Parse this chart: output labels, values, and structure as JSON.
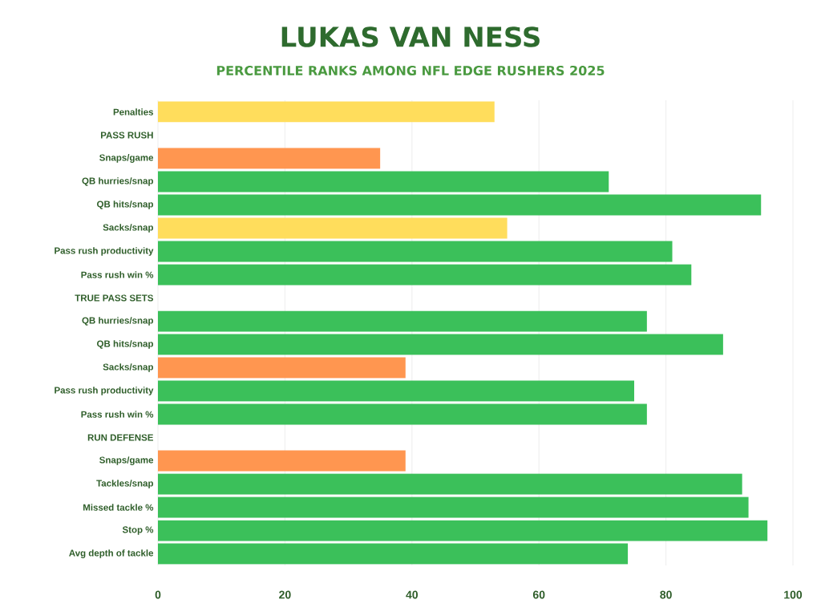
{
  "chart_data": {
    "type": "bar",
    "orientation": "horizontal",
    "title": "LUKAS VAN NESS",
    "subtitle": "PERCENTILE RANKS AMONG NFL EDGE RUSHERS 2025",
    "categories": [
      "Penalties",
      "PASS RUSH",
      "Snaps/game",
      "QB hurries/snap",
      "QB hits/snap",
      "Sacks/snap",
      "Pass rush productivity",
      "Pass rush win %",
      "TRUE PASS SETS",
      "QB hurries/snap",
      "QB hits/snap",
      "Sacks/snap",
      "Pass rush productivity",
      "Pass rush win %",
      "RUN DEFENSE",
      "Snaps/game",
      "Tackles/snap",
      "Missed tackle %",
      "Stop %",
      "Avg depth of tackle"
    ],
    "values": [
      53,
      null,
      35,
      71,
      95,
      55,
      81,
      84,
      null,
      77,
      89,
      39,
      75,
      77,
      null,
      39,
      92,
      93,
      96,
      74
    ],
    "colors": [
      "#ffdd5c",
      null,
      "#ff9650",
      "#3bc05a",
      "#3bc05a",
      "#ffdd5c",
      "#3bc05a",
      "#3bc05a",
      null,
      "#3bc05a",
      "#3bc05a",
      "#ff9650",
      "#3bc05a",
      "#3bc05a",
      null,
      "#ff9650",
      "#3bc05a",
      "#3bc05a",
      "#3bc05a",
      "#3bc05a"
    ],
    "xlim": [
      0,
      100
    ],
    "xticks": [
      0,
      20,
      40,
      60,
      80,
      100
    ],
    "grid": "x"
  }
}
